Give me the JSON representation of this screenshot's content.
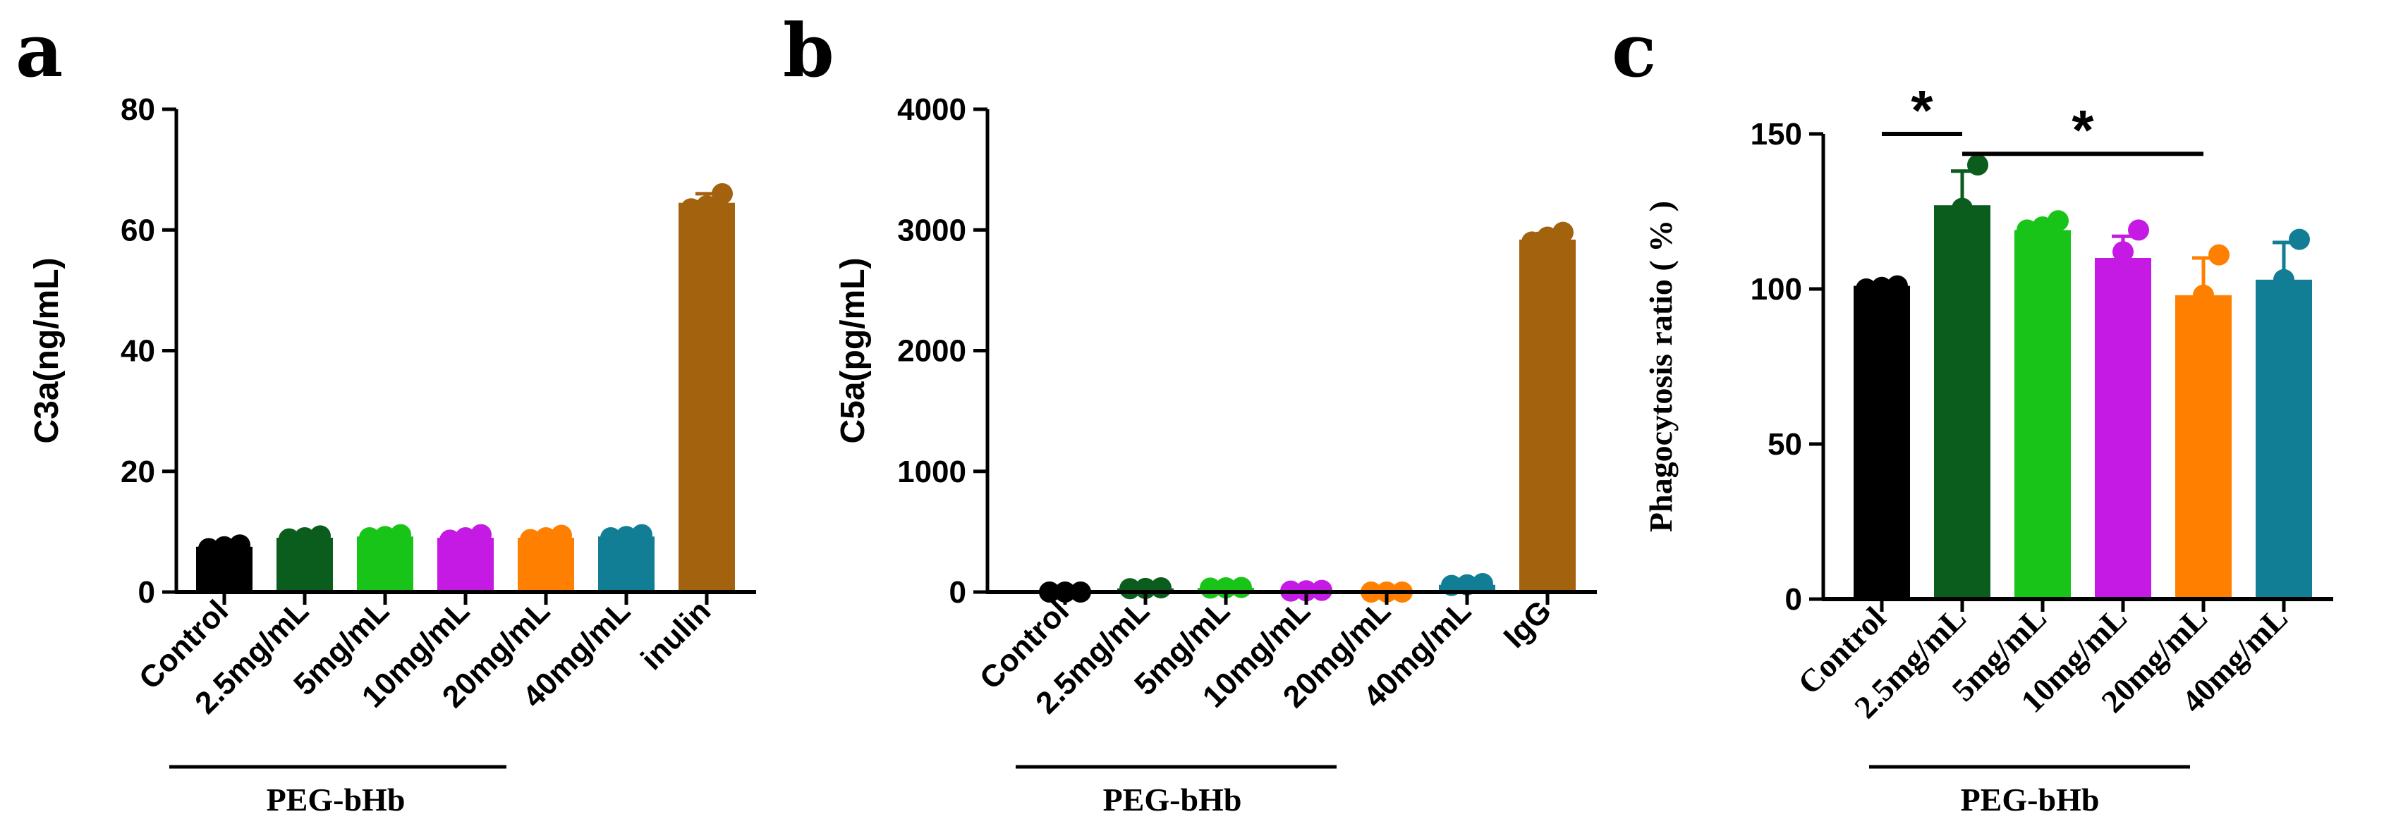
{
  "chart_data": [
    {
      "panel": "a",
      "type": "bar",
      "ylabel": "C3a(ng/mL)",
      "ylim": [
        0,
        80
      ],
      "yticks": [
        0,
        20,
        40,
        60,
        80
      ],
      "categories": [
        "Control",
        "2.5mg/mL",
        "5mg/mL",
        "10mg/mL",
        "20mg/mL",
        "40mg/mL",
        "inulin"
      ],
      "values": [
        7.5,
        9.0,
        9.2,
        9.0,
        9.0,
        9.2,
        64.5
      ],
      "error": [
        0.3,
        0.3,
        0.3,
        0.5,
        0.4,
        0.4,
        1.5
      ],
      "points": [
        [
          7.2,
          7.5,
          7.8
        ],
        [
          8.8,
          9.0,
          9.3
        ],
        [
          9.0,
          9.2,
          9.5
        ],
        [
          8.6,
          9.0,
          9.5
        ],
        [
          8.7,
          9.0,
          9.4
        ],
        [
          9.0,
          9.2,
          9.5
        ],
        [
          63.5,
          64.0,
          66.0
        ]
      ],
      "colors": [
        "#000000",
        "#0b5d1e",
        "#19c419",
        "#c51ae3",
        "#ff8000",
        "#127e96",
        "#a3620e"
      ],
      "group": {
        "label": "PEG-bHb",
        "from": 1,
        "to": 5
      }
    },
    {
      "panel": "b",
      "type": "bar",
      "ylabel": "C5a(pg/mL)",
      "ylim": [
        0,
        4000
      ],
      "yticks": [
        0,
        1000,
        2000,
        3000,
        4000
      ],
      "categories": [
        "Control",
        "2.5mg/mL",
        "5mg/mL",
        "10mg/mL",
        "20mg/mL",
        "40mg/mL",
        "IgG"
      ],
      "values": [
        0,
        30,
        35,
        10,
        0,
        60,
        2920
      ],
      "error": [
        0,
        5,
        5,
        5,
        0,
        10,
        50
      ],
      "points": [
        [
          0,
          0,
          0
        ],
        [
          28,
          30,
          35
        ],
        [
          33,
          35,
          38
        ],
        [
          8,
          10,
          14
        ],
        [
          0,
          0,
          0
        ],
        [
          55,
          60,
          70
        ],
        [
          2900,
          2940,
          2980
        ]
      ],
      "colors": [
        "#000000",
        "#0b5d1e",
        "#19c419",
        "#c51ae3",
        "#ff8000",
        "#127e96",
        "#a3620e"
      ],
      "group": {
        "label": "PEG-bHb",
        "from": 1,
        "to": 5
      }
    },
    {
      "panel": "c",
      "type": "bar",
      "ylabel": "Phagocytosis ratio ( % )",
      "ylim": [
        0,
        150
      ],
      "yticks": [
        0,
        50,
        100,
        150
      ],
      "categories": [
        "Control",
        "2.5mg/mL",
        "5mg/mL",
        "10mg/mL",
        "20mg/mL",
        "40mg/mL"
      ],
      "values": [
        101,
        127,
        119,
        110,
        98,
        103
      ],
      "error": [
        0.5,
        11,
        2,
        7,
        12,
        12
      ],
      "points": [
        [
          100,
          100.5,
          101
        ],
        [
          120,
          126,
          140
        ],
        [
          119,
          120,
          122
        ],
        [
          105,
          112,
          119
        ],
        [
          90,
          98,
          111
        ],
        [
          94,
          103,
          116
        ]
      ],
      "colors": [
        "#000000",
        "#0b5d1e",
        "#19c419",
        "#c51ae3",
        "#ff8000",
        "#127e96"
      ],
      "group": {
        "label": "PEG-bHb",
        "from": 1,
        "to": 5
      },
      "significance": [
        {
          "from": 0,
          "to": 1,
          "y": 150,
          "label": "*"
        },
        {
          "from": 1,
          "to": 4,
          "y": 147,
          "label": "*"
        }
      ]
    }
  ]
}
